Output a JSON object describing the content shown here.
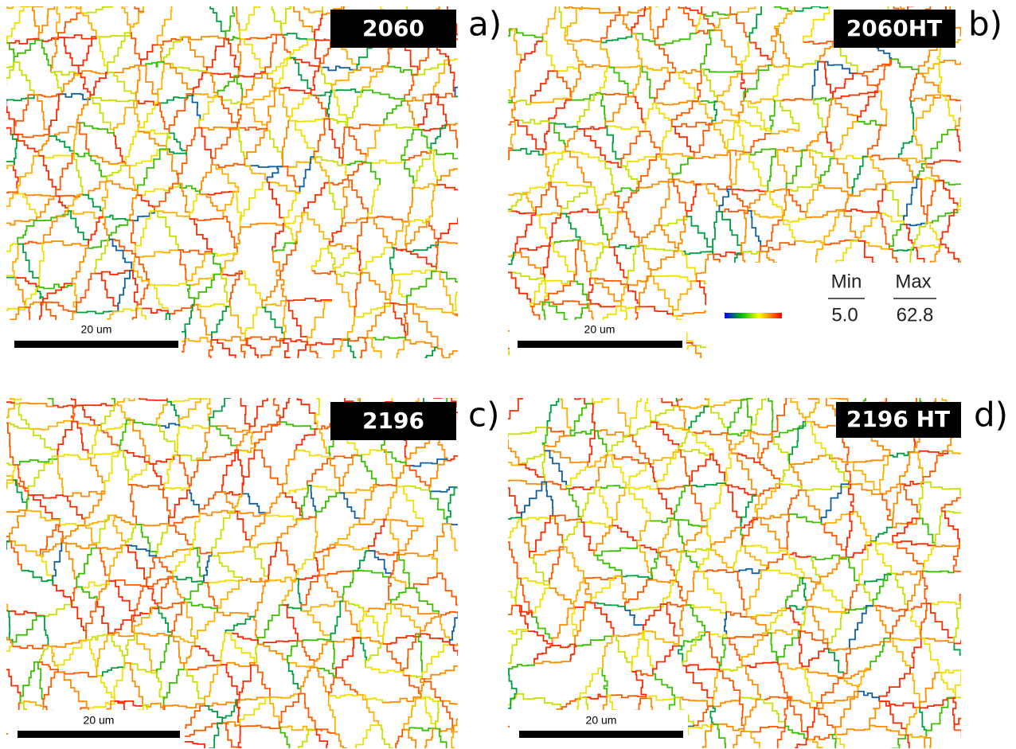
{
  "panels": [
    {
      "sample": "2060",
      "letter": "a)",
      "scale_bar": "20 um"
    },
    {
      "sample": "2060HT",
      "letter": "b)",
      "scale_bar": "20 um"
    },
    {
      "sample": "2196",
      "letter": "c)",
      "scale_bar": "20 um"
    },
    {
      "sample": "2196 HT",
      "letter": "d)",
      "scale_bar": "20 um"
    }
  ],
  "legend": {
    "min_label": "Min",
    "max_label": "Max",
    "min_value": "5.0",
    "max_value": "62.8"
  }
}
